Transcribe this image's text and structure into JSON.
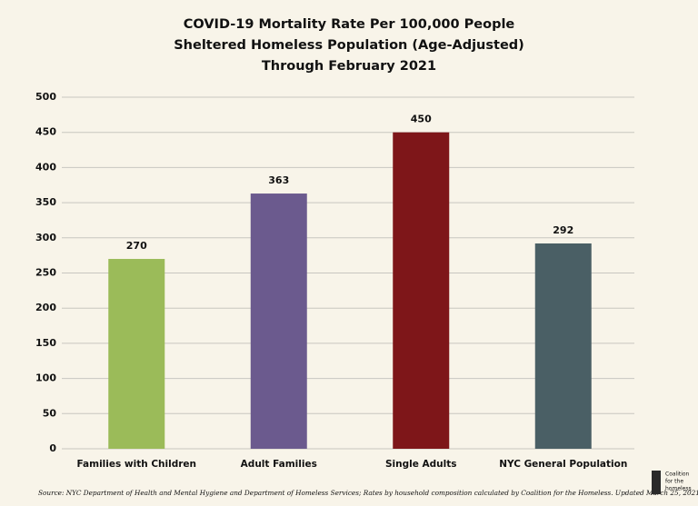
{
  "chart_data": {
    "type": "bar",
    "title": [
      "COVID-19 Mortality Rate Per 100,000 People",
      "Sheltered Homeless Population (Age-Adjusted)",
      "Through February 2021"
    ],
    "categories": [
      "Families with Children",
      "Adult Families",
      "Single Adults",
      "NYC General Population"
    ],
    "values": [
      270,
      363,
      450,
      292
    ],
    "colors": [
      "#9bbb59",
      "#6b5a8e",
      "#7e1619",
      "#4a5f65"
    ],
    "ylim": [
      0,
      500
    ],
    "yticks": [
      0,
      50,
      100,
      150,
      200,
      250,
      300,
      350,
      400,
      450,
      500
    ],
    "grid": true,
    "source": "Source: NYC Department of Health and Mental Hygiene and Department of Homeless Services; Rates by household composition calculated by Coalition for the Homeless. Updated March 25, 2021",
    "logo": [
      "Coalition",
      "for the",
      "homeless"
    ]
  }
}
